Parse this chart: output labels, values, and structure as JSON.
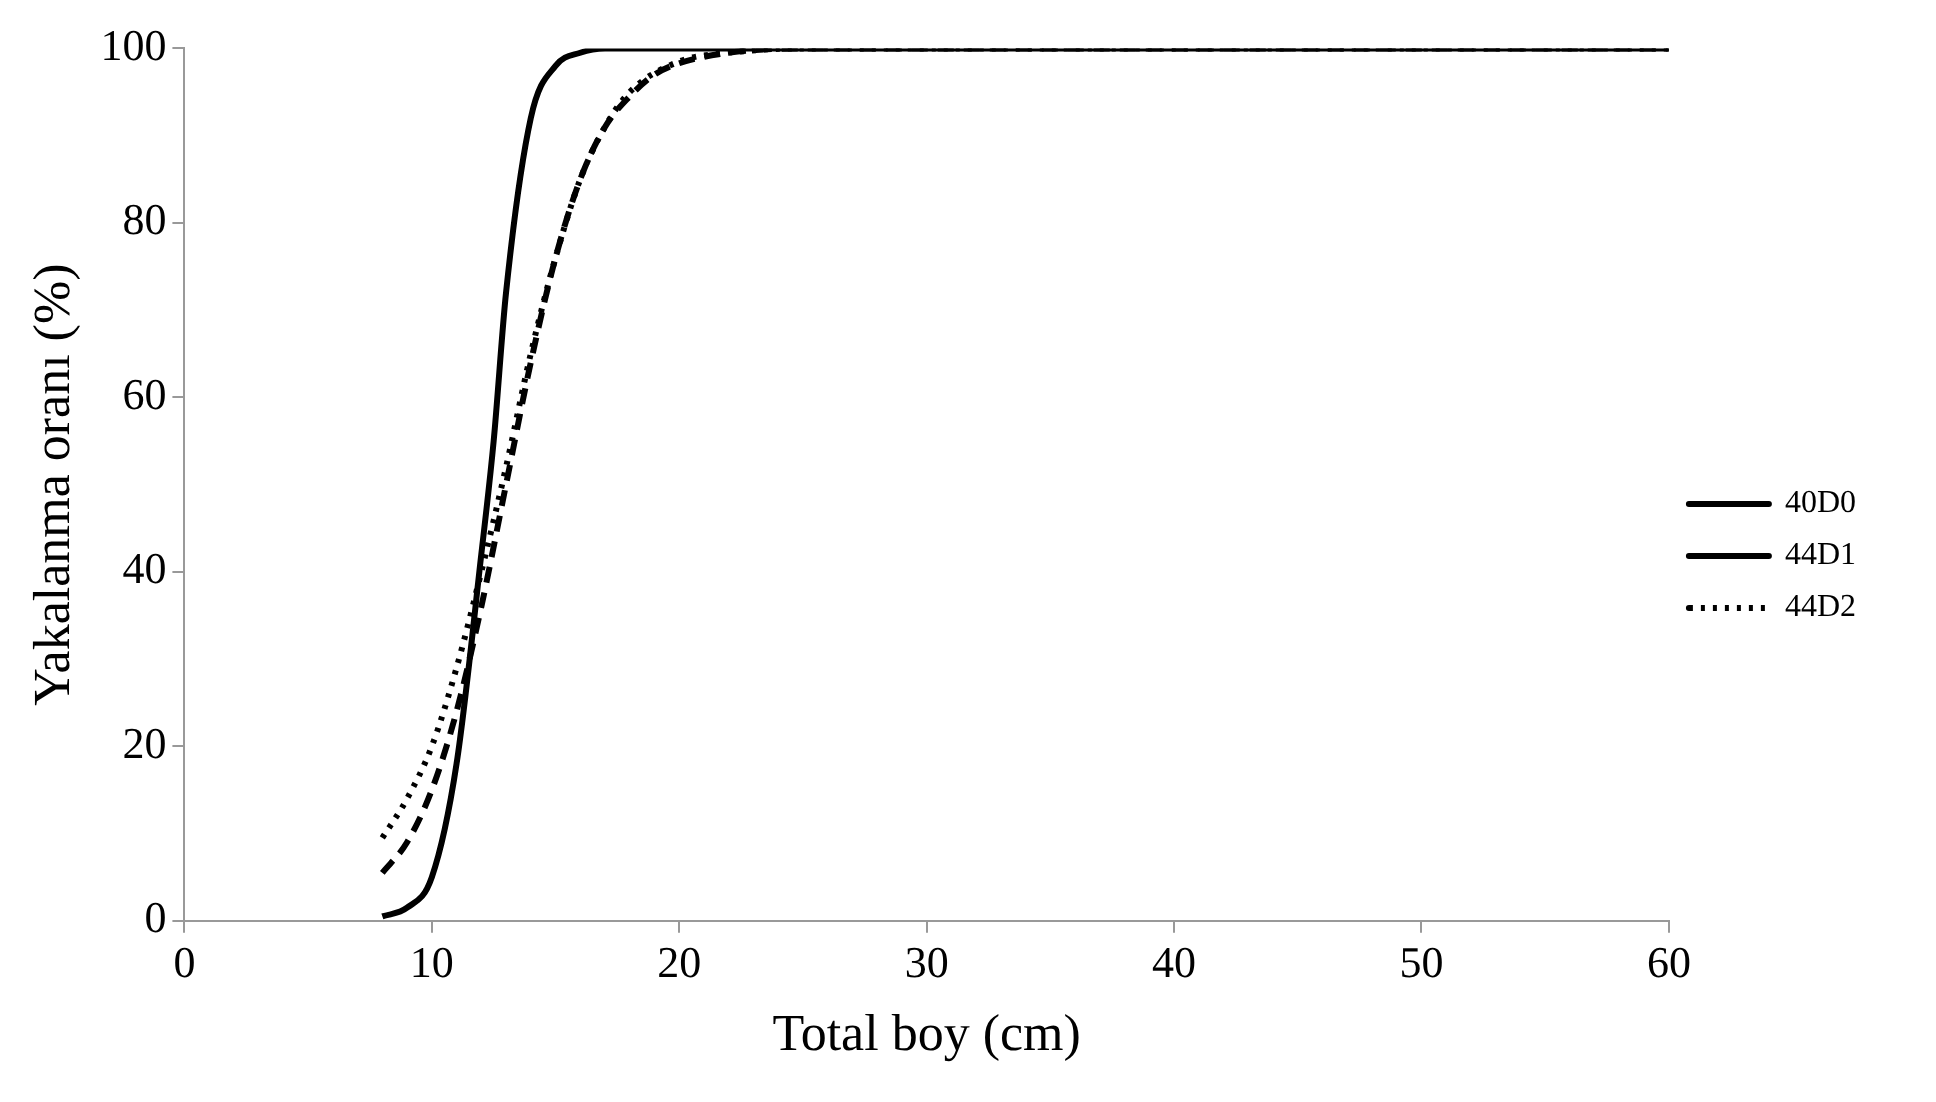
{
  "chart_data": {
    "type": "line",
    "xlabel": "Total boy (cm)",
    "ylabel": "Yakalanma oranı (%)",
    "xlim": [
      0,
      60
    ],
    "xticks": [
      0,
      10,
      20,
      30,
      40,
      50,
      60
    ],
    "ylim": [
      0,
      100
    ],
    "yticks": [
      0,
      20,
      40,
      60,
      80,
      100
    ],
    "grid": false,
    "legend": "right",
    "marker": "none",
    "series": [
      {
        "name": "40D0",
        "color": "#000000",
        "line_style": "solid",
        "x": [
          8,
          9,
          10,
          11,
          12,
          12.5,
          13,
          14,
          15,
          16,
          17,
          60
        ],
        "values": [
          0.5,
          1.5,
          5,
          18,
          42,
          55,
          72,
          92,
          98,
          99.5,
          100,
          100
        ]
      },
      {
        "name": "44D1",
        "color": "#000000",
        "line_style": "dashed",
        "x": [
          8,
          9,
          10,
          11,
          12,
          13,
          14,
          15,
          16,
          17,
          18,
          19,
          20,
          22,
          25,
          60
        ],
        "values": [
          5.5,
          9,
          15,
          24,
          36,
          50,
          64,
          76,
          85,
          91,
          94.5,
          97,
          98.3,
          99.5,
          100,
          100
        ]
      },
      {
        "name": "44D2",
        "color": "#000000",
        "line_style": "dotted",
        "x": [
          8,
          9,
          10,
          11,
          12,
          13,
          14,
          15,
          16,
          17,
          18,
          20,
          22,
          25,
          60
        ],
        "values": [
          9.5,
          14,
          20,
          29,
          40,
          52,
          65,
          76,
          85,
          91,
          95,
          98.5,
          99.5,
          100,
          100
        ]
      }
    ]
  }
}
